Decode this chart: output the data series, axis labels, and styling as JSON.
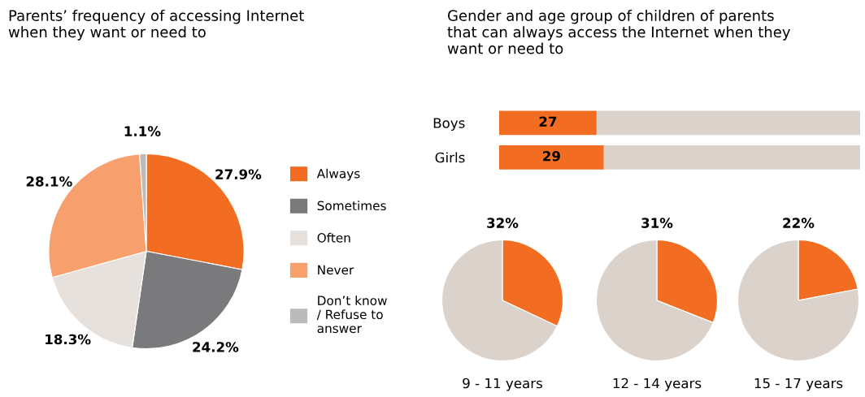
{
  "chart_data": [
    {
      "type": "pie",
      "title": "Parents’ frequency of accessing Internet\nwhen they want or need to",
      "categories": [
        "Always",
        "Sometimes",
        "Often",
        "Never",
        "Don’t know\n/ Refuse to\nanswer"
      ],
      "values": [
        27.9,
        24.2,
        18.3,
        28.1,
        1.1
      ],
      "colors": [
        "#f26c22",
        "#7a797b",
        "#e6e1dd",
        "#f7a06e",
        "#bcbabb"
      ],
      "value_labels": [
        "27.9%",
        "24.2%",
        "18.3%",
        "28.1%",
        "1.1%"
      ],
      "legend": "right"
    },
    {
      "type": "bar",
      "orientation": "horizontal",
      "stacked": true,
      "title": "Gender and age group of children of parents\nthat can always access the Internet when they\nwant or need to",
      "categories": [
        "Boys",
        "Girls"
      ],
      "series": [
        {
          "color": "#f26c22",
          "values": [
            27,
            29
          ],
          "value_labels": [
            "27",
            "29"
          ]
        },
        {
          "color": "#dbd2cc",
          "values": [
            73,
            71
          ]
        }
      ],
      "xlim": [
        0,
        100
      ],
      "tick_labels": "y"
    },
    {
      "type": "pie",
      "title": "32%",
      "xlabel": "9 - 11 years",
      "categories": [
        null,
        null
      ],
      "values": [
        32,
        68
      ],
      "colors": [
        "#f26c22",
        "#dbd2cc"
      ]
    },
    {
      "type": "pie",
      "title": "31%",
      "xlabel": "12 - 14 years",
      "categories": [
        null,
        null
      ],
      "values": [
        31,
        69
      ],
      "colors": [
        "#f26c22",
        "#dbd2cc"
      ]
    },
    {
      "type": "pie",
      "title": "22%",
      "xlabel": "15 - 17 years",
      "categories": [
        null,
        null
      ],
      "values": [
        22,
        78
      ],
      "colors": [
        "#f26c22",
        "#dbd2cc"
      ]
    }
  ]
}
